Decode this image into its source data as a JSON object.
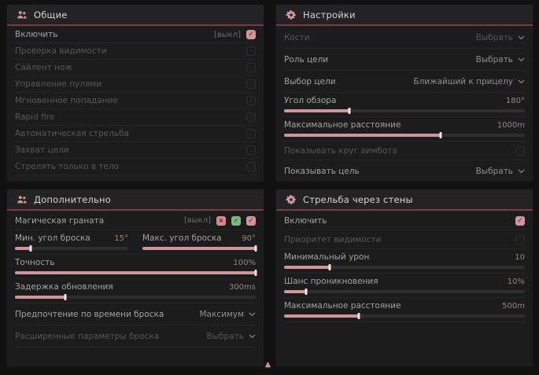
{
  "page": {
    "background": "#111111",
    "accent": "#d2949b",
    "header_divider": "#7d3a42"
  },
  "cursor": {
    "glyph": "▲"
  },
  "dropdown_chevron": "chevron-down-icon",
  "panels": [
    {
      "id": "general",
      "title": "Общие",
      "icon": "users-icon",
      "rows": [
        {
          "type": "checkbox",
          "label": "Включить",
          "prefix": "[выкл]",
          "checked": true,
          "enabled": true
        },
        {
          "type": "checkbox",
          "label": "Проверка видимости",
          "checked": false,
          "enabled": false
        },
        {
          "type": "checkbox",
          "label": "Сайлент нож",
          "checked": false,
          "enabled": false
        },
        {
          "type": "checkbox",
          "label": "Управление пулями",
          "checked": false,
          "enabled": false
        },
        {
          "type": "checkbox",
          "label": "Мгновенное попадание",
          "checked": false,
          "enabled": false
        },
        {
          "type": "checkbox",
          "label": "Rapid fire",
          "checked": false,
          "enabled": false
        },
        {
          "type": "checkbox",
          "label": "Автоматическая стрельба",
          "checked": false,
          "enabled": false
        },
        {
          "type": "checkbox",
          "label": "Захват цели",
          "checked": false,
          "enabled": false
        },
        {
          "type": "checkbox",
          "label": "Стрелять только в тело",
          "checked": false,
          "enabled": false
        }
      ]
    },
    {
      "id": "settings",
      "title": "Настройки",
      "icon": "gear-icon",
      "rows": [
        {
          "type": "dropdown",
          "label": "Кости",
          "value": "Выбрать",
          "enabled": false
        },
        {
          "type": "dropdown",
          "label": "Роль цели",
          "value": "Выбрать",
          "enabled": true
        },
        {
          "type": "dropdown",
          "label": "Выбор цели",
          "value": "Ближайший к прицелу",
          "enabled": true
        },
        {
          "type": "slider",
          "label": "Угол обзора",
          "value": "180°",
          "fill": 27
        },
        {
          "type": "slider",
          "label": "Максимальное расстояние",
          "value": "1000m",
          "fill": 65
        },
        {
          "type": "checkbox",
          "label": "Показывать круг аимбота",
          "checked": false,
          "enabled": false,
          "tall": true
        },
        {
          "type": "dropdown",
          "label": "Показывать цель",
          "value": "Выбрать",
          "enabled": true
        }
      ]
    },
    {
      "id": "additional",
      "title": "Дополнительно",
      "icon": "users-icon",
      "rows": [
        {
          "type": "checkbox",
          "label": "Магическая граната",
          "prefix": "[выкл]",
          "checked": true,
          "enabled": true,
          "tall": true,
          "badges": [
            {
              "name": "broken-heart-icon",
              "glyph": "×",
              "color": "#d9868f"
            },
            {
              "name": "clover-icon",
              "glyph": "✓",
              "color": "#7cb87d"
            }
          ]
        },
        {
          "type": "dual_slider",
          "left": {
            "label": "Мин. угол броска",
            "value": "15°",
            "fill": 14
          },
          "right": {
            "label": "Макс. угол броска",
            "value": "90°",
            "fill": 100
          }
        },
        {
          "type": "slider",
          "label": "Точность",
          "value": "100%",
          "fill": 100
        },
        {
          "type": "slider",
          "label": "Задержка обновления",
          "value": "300ms",
          "fill": 21
        },
        {
          "type": "dropdown",
          "label": "Предпочтение по времени броска",
          "value": "Максимум",
          "enabled": true
        },
        {
          "type": "dropdown",
          "label": "Расширенные параметры броска",
          "value": "Выбрать",
          "enabled": false
        }
      ]
    },
    {
      "id": "wallbang",
      "title": "Стрельба через стены",
      "icon": "gear-icon",
      "rows": [
        {
          "type": "checkbox",
          "label": "Включить",
          "checked": true,
          "enabled": true,
          "tall": true
        },
        {
          "type": "checkbox",
          "label": "Приоритет видимости",
          "checked": false,
          "enabled": false,
          "tall": true
        },
        {
          "type": "slider",
          "label": "Минимальный урон",
          "value": "10",
          "fill": 19
        },
        {
          "type": "slider",
          "label": "Шанс проникновения",
          "value": "10%",
          "fill": 9
        },
        {
          "type": "slider",
          "label": "Максимальное расстояние",
          "value": "500m",
          "fill": 31
        }
      ]
    }
  ]
}
